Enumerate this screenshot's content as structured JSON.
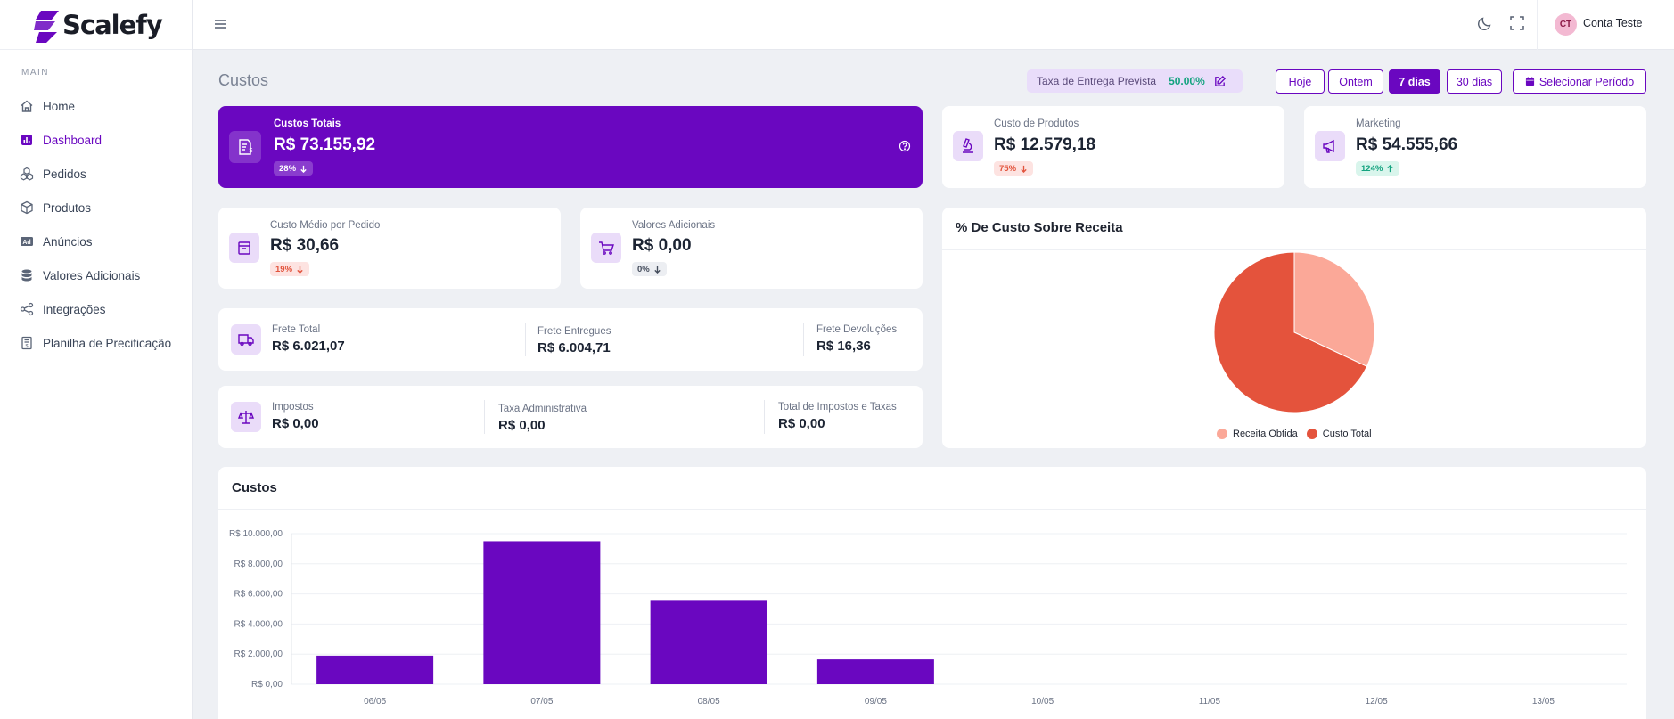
{
  "brand": {
    "name": "Scalefy",
    "color": "#6a07c0"
  },
  "sidebar": {
    "section": "MAIN",
    "items": [
      {
        "label": "Home",
        "icon": "home-icon"
      },
      {
        "label": "Dashboard",
        "icon": "bar-chart-icon",
        "active": true
      },
      {
        "label": "Pedidos",
        "icon": "cubes-icon"
      },
      {
        "label": "Produtos",
        "icon": "box-icon"
      },
      {
        "label": "Anúncios",
        "icon": "ad-icon"
      },
      {
        "label": "Valores Adicionais",
        "icon": "database-icon"
      },
      {
        "label": "Integrações",
        "icon": "share-icon"
      },
      {
        "label": "Planilha de Precificação",
        "icon": "spreadsheet-icon"
      }
    ]
  },
  "topbar": {
    "user_initials": "CT",
    "user_name": "Conta Teste"
  },
  "header": {
    "title": "Custos",
    "taxa_label": "Taxa de Entrega Prevista",
    "taxa_value": "50.00%",
    "periods": [
      "Hoje",
      "Ontem",
      "7 dias",
      "30 dias",
      "Selecionar Período"
    ],
    "active_period": "7 dias"
  },
  "cards": {
    "custos_totais": {
      "label": "Custos Totais",
      "value": "R$ 73.155,92",
      "change": "28%",
      "trend": "down"
    },
    "custo_produtos": {
      "label": "Custo de Produtos",
      "value": "R$ 12.579,18",
      "change": "75%",
      "trend": "down"
    },
    "marketing": {
      "label": "Marketing",
      "value": "R$ 54.555,66",
      "change": "124%",
      "trend": "up"
    },
    "custo_medio": {
      "label": "Custo Médio por Pedido",
      "value": "R$ 30,66",
      "change": "19%",
      "trend": "down"
    },
    "valores_adicionais": {
      "label": "Valores Adicionais",
      "value": "R$ 0,00",
      "change": "0%",
      "trend": "down"
    },
    "frete": {
      "total_label": "Frete Total",
      "total_value": "R$ 6.021,07",
      "entregues_label": "Frete Entregues",
      "entregues_value": "R$ 6.004,71",
      "devolucoes_label": "Frete Devoluções",
      "devolucoes_value": "R$ 16,36"
    },
    "impostos": {
      "impostos_label": "Impostos",
      "impostos_value": "R$ 0,00",
      "taxa_label": "Taxa Administrativa",
      "taxa_value": "R$ 0,00",
      "total_label": "Total de Impostos e Taxas",
      "total_value": "R$ 0,00"
    }
  },
  "pie": {
    "title": "% De Custo Sobre Receita",
    "legend": [
      "Receita Obtida",
      "Custo Total"
    ],
    "colors": [
      "#fba898",
      "#e4533c"
    ]
  },
  "bar": {
    "title": "Custos",
    "color": "#6a07c0"
  },
  "chart_data": [
    {
      "type": "pie",
      "title": "% De Custo Sobre Receita",
      "labels": [
        "Receita Obtida",
        "Custo Total"
      ],
      "values": [
        32,
        68
      ]
    },
    {
      "type": "bar",
      "title": "Custos",
      "categories": [
        "06/05",
        "07/05",
        "08/05",
        "09/05",
        "10/05",
        "11/05",
        "12/05",
        "13/05"
      ],
      "values": [
        1900,
        9500,
        5600,
        1650,
        0,
        0,
        0,
        0
      ],
      "yticks": [
        "R$ 0,00",
        "R$ 2.000,00",
        "R$ 4.000,00",
        "R$ 6.000,00",
        "R$ 8.000,00",
        "R$ 10.000,00"
      ],
      "ylim": [
        0,
        10000
      ],
      "grid": true
    }
  ]
}
